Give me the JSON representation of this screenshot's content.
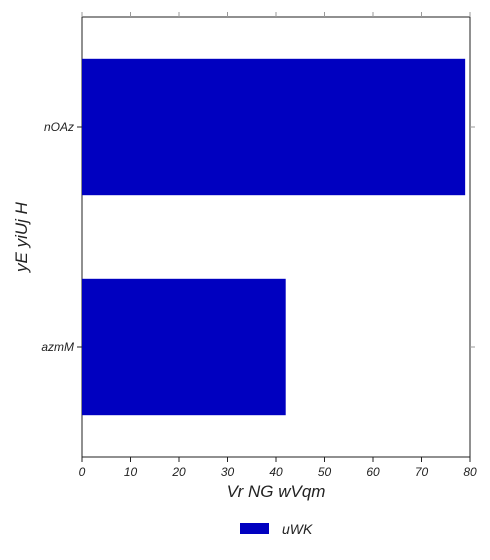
{
  "chart_data": {
    "type": "bar",
    "orientation": "horizontal",
    "categories": [
      "azmM",
      "nOAz"
    ],
    "series": [
      {
        "name": "uWK",
        "values": [
          42,
          79
        ],
        "color": "#0000c0"
      }
    ],
    "xlabel": "Vr  NG wVqm",
    "ylabel": "yE yiUj H",
    "xlim": [
      0,
      80
    ],
    "xticks": [
      "0",
      "10",
      "20",
      "30",
      "40",
      "50",
      "60",
      "70",
      "80"
    ],
    "grid": false,
    "legend_position": "bottom-center"
  }
}
